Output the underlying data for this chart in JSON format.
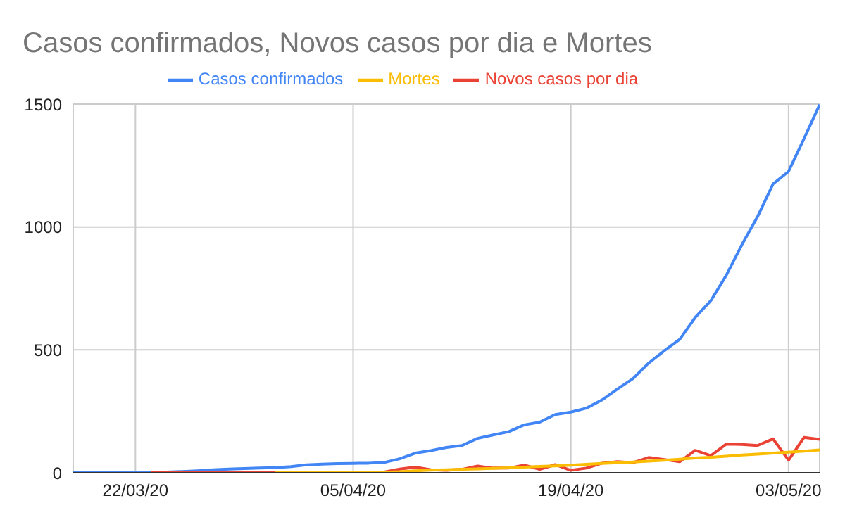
{
  "chart_data": {
    "type": "line",
    "title": "Casos confirmados, Novos casos por dia e Mortes",
    "x": [
      "2020-03-18",
      "2020-03-19",
      "2020-03-20",
      "2020-03-21",
      "2020-03-22",
      "2020-03-23",
      "2020-03-24",
      "2020-03-25",
      "2020-03-26",
      "2020-03-27",
      "2020-03-28",
      "2020-03-29",
      "2020-03-30",
      "2020-03-31",
      "2020-04-01",
      "2020-04-02",
      "2020-04-03",
      "2020-04-04",
      "2020-04-05",
      "2020-04-06",
      "2020-04-07",
      "2020-04-08",
      "2020-04-09",
      "2020-04-10",
      "2020-04-11",
      "2020-04-12",
      "2020-04-13",
      "2020-04-14",
      "2020-04-15",
      "2020-04-16",
      "2020-04-17",
      "2020-04-18",
      "2020-04-19",
      "2020-04-20",
      "2020-04-21",
      "2020-04-22",
      "2020-04-23",
      "2020-04-24",
      "2020-04-25",
      "2020-04-26",
      "2020-04-27",
      "2020-04-28",
      "2020-04-29",
      "2020-04-30",
      "2020-05-01",
      "2020-05-02",
      "2020-05-03",
      "2020-05-04",
      "2020-05-05"
    ],
    "series": [
      {
        "name": "Casos confirmados",
        "color": "#4285f4",
        "values": [
          0,
          0,
          0,
          0,
          0,
          1,
          3,
          5,
          8,
          12,
          15,
          17,
          19,
          21,
          25,
          32,
          35,
          37,
          38,
          39,
          42,
          57,
          80,
          90,
          103,
          111,
          140,
          154,
          167,
          195,
          206,
          237,
          247,
          263,
          296,
          341,
          383,
          446,
          496,
          543,
          632,
          700,
          804,
          928,
          1041,
          1175,
          1226,
          1360,
          1498
        ]
      },
      {
        "name": "Novos casos por dia",
        "color": "#ea4335",
        "values": [
          null,
          null,
          null,
          null,
          null,
          0,
          0,
          0,
          0,
          0,
          0,
          0,
          0,
          0,
          0,
          0,
          0,
          0,
          0,
          0,
          3,
          15,
          23,
          12,
          10,
          14,
          27,
          19,
          19,
          31,
          14,
          33,
          10,
          19,
          39,
          45,
          41,
          62,
          54,
          45,
          91,
          70,
          117,
          115,
          111,
          138,
          51,
          144,
          136
        ]
      },
      {
        "name": "Mortes",
        "color": "#fbbc04",
        "values": [
          null,
          null,
          null,
          null,
          null,
          null,
          null,
          null,
          null,
          null,
          null,
          null,
          null,
          0,
          0,
          0,
          0,
          0,
          0,
          1,
          2,
          4,
          8,
          11,
          12,
          14,
          16,
          18,
          20,
          23,
          26,
          28,
          31,
          34,
          38,
          41,
          44,
          47,
          51,
          55,
          60,
          63,
          67,
          72,
          76,
          80,
          84,
          88,
          93
        ]
      }
    ],
    "xlim": [
      "2020-03-18",
      "2020-05-05"
    ],
    "xticks": [
      {
        "value": "2020-03-22",
        "label": "22/03/20"
      },
      {
        "value": "2020-04-05",
        "label": "05/04/20"
      },
      {
        "value": "2020-04-19",
        "label": "19/04/20"
      },
      {
        "value": "2020-05-03",
        "label": "03/05/20"
      }
    ],
    "ylim": [
      0,
      1500
    ],
    "yticks": [
      0,
      500,
      1000,
      1500
    ],
    "grid": true,
    "legend": "top",
    "marker": "none",
    "line_style": "solid"
  }
}
